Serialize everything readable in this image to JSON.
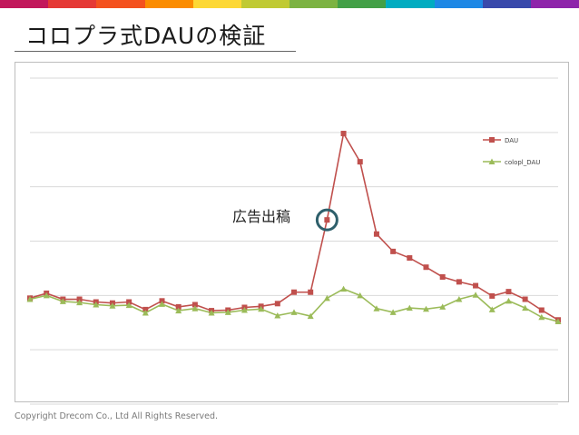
{
  "header": {
    "title": "コロプラ式DAUの検証",
    "stripe_colors": [
      "#c2185b",
      "#e53935",
      "#f4511e",
      "#fb8c00",
      "#fdd835",
      "#c0ca33",
      "#7cb342",
      "#43a047",
      "#00acc1",
      "#1e88e5",
      "#3949ab",
      "#8e24aa"
    ]
  },
  "annotation": {
    "text": "広告出稿",
    "ring_color": "#2e5f6b"
  },
  "footer": {
    "copyright": "Copyright Drecom Co., Ltd All Rights Reserved."
  },
  "chart_data": {
    "type": "line",
    "title": "",
    "xlabel": "",
    "ylabel": "",
    "ylim": [
      0,
      6
    ],
    "grid": true,
    "legend_position": "top-right",
    "annotation_index": 18,
    "series": [
      {
        "name": "DAU",
        "color": "#c0504d",
        "marker": "square",
        "values": [
          1.95,
          2.04,
          1.93,
          1.93,
          1.88,
          1.86,
          1.88,
          1.74,
          1.9,
          1.79,
          1.83,
          1.72,
          1.73,
          1.78,
          1.8,
          1.85,
          2.06,
          2.06,
          3.39,
          4.98,
          4.46,
          3.13,
          2.81,
          2.69,
          2.52,
          2.34,
          2.25,
          2.18,
          1.99,
          2.07,
          1.93,
          1.73,
          1.55
        ]
      },
      {
        "name": "colopl_DAU",
        "color": "#9bbb59",
        "marker": "triangle",
        "values": [
          1.93,
          2.0,
          1.89,
          1.87,
          1.83,
          1.81,
          1.82,
          1.68,
          1.84,
          1.72,
          1.76,
          1.68,
          1.69,
          1.73,
          1.75,
          1.63,
          1.69,
          1.62,
          1.95,
          2.12,
          2.0,
          1.76,
          1.69,
          1.77,
          1.75,
          1.79,
          1.93,
          2.01,
          1.74,
          1.9,
          1.77,
          1.6,
          1.52
        ]
      }
    ]
  }
}
